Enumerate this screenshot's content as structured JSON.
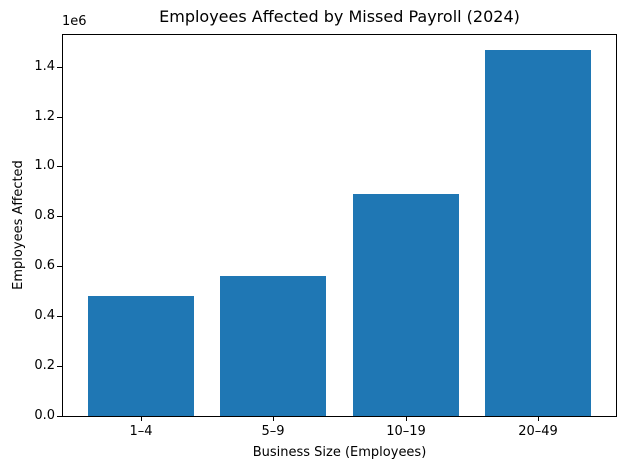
{
  "chart_data": {
    "type": "bar",
    "title": "Employees Affected by Missed Payroll (2024)",
    "xlabel": "Business Size (Employees)",
    "ylabel": "Employees Affected",
    "categories": [
      "1–4",
      "5–9",
      "10–19",
      "20–49"
    ],
    "values": [
      480000,
      560000,
      890000,
      1465000
    ],
    "series": [
      {
        "name": "Employees Affected",
        "values": [
          480000,
          560000,
          890000,
          1465000
        ]
      }
    ],
    "bar_color": "#1f77b4",
    "text_color": "#000000",
    "ylim": [
      0,
      1531000
    ],
    "yticks": [
      0,
      200000,
      400000,
      600000,
      800000,
      1000000,
      1200000,
      1400000
    ],
    "ytick_labels": [
      "0.0",
      "0.2",
      "0.4",
      "0.6",
      "0.8",
      "1.0",
      "1.2",
      "1.4"
    ],
    "y_offset_label": "1e6",
    "grid": false,
    "legend_position": "none"
  }
}
